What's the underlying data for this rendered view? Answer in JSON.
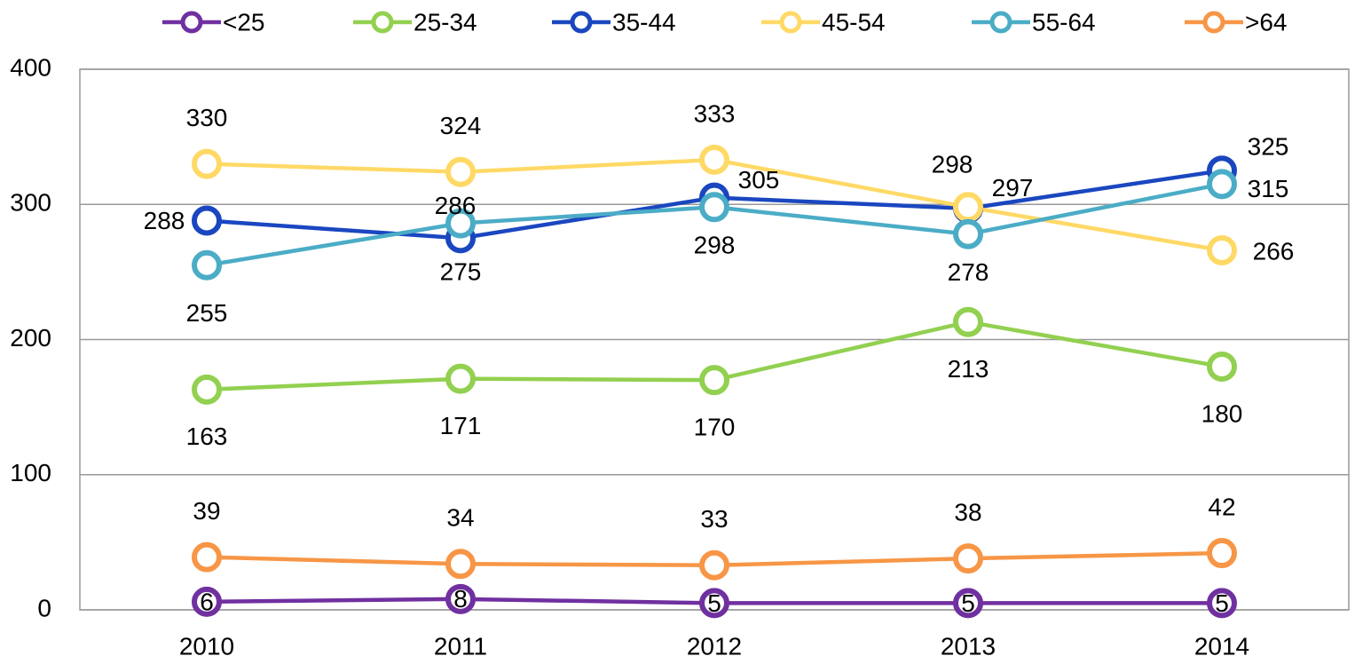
{
  "chart_data": {
    "type": "line",
    "categories": [
      "2010",
      "2011",
      "2012",
      "2013",
      "2014"
    ],
    "series": [
      {
        "name": "<25",
        "color": "#7030a0",
        "values": [
          6,
          8,
          5,
          5,
          5
        ]
      },
      {
        "name": "25-34",
        "color": "#92d050",
        "values": [
          163,
          171,
          170,
          213,
          180
        ]
      },
      {
        "name": "35-44",
        "color": "#1a47c0",
        "values": [
          288,
          275,
          305,
          297,
          325
        ]
      },
      {
        "name": "45-54",
        "color": "#ffd966",
        "values": [
          330,
          324,
          333,
          298,
          266
        ]
      },
      {
        "name": "55-64",
        "color": "#4bacc6",
        "values": [
          255,
          286,
          298,
          278,
          315
        ]
      },
      {
        "name": ">64",
        "color": "#f79646",
        "values": [
          39,
          34,
          33,
          38,
          42
        ]
      }
    ],
    "ylim": [
      0,
      400
    ],
    "yticks": [
      0,
      100,
      200,
      300,
      400
    ],
    "grid": true,
    "legend": "top"
  }
}
